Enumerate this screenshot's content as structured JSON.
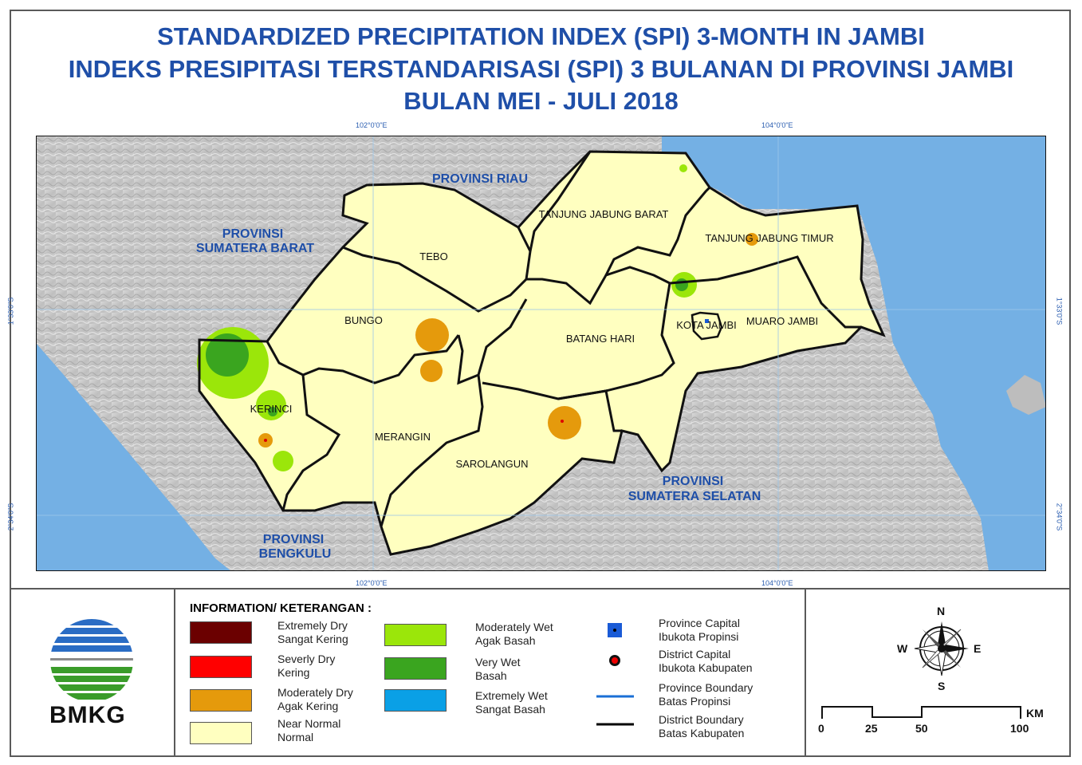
{
  "title": {
    "line1": "STANDARDIZED PRECIPITATION INDEX (SPI) 3-MONTH IN JAMBI",
    "line2": "INDEKS PRESIPITASI TERSTANDARISASI (SPI) 3 BULANAN DI PROVINSI JAMBI",
    "line3": "BULAN MEI - JULI 2018"
  },
  "coords": {
    "top_left": "102°0'0\"E",
    "top_right": "104°0'0\"E",
    "bottom_left": "102°0'0\"E",
    "bottom_right": "104°0'0\"E",
    "left_upper": "1°33'0\"S",
    "left_lower": "2°34'0\"S",
    "right_upper": "1°33'0\"S",
    "right_lower": "2°34'0\"S"
  },
  "map_labels": {
    "riau": "PROVINSI RIAU",
    "sumbar_1": "PROVINSI",
    "sumbar_2": "SUMATERA BARAT",
    "sumsel_1": "PROVINSI",
    "sumsel_2": "SUMATERA SELATAN",
    "bengkulu_1": "PROVINSI",
    "bengkulu_2": "BENGKULU",
    "tebo": "TEBO",
    "bungo": "BUNGO",
    "kerinci": "KERINCI",
    "merangin": "MERANGIN",
    "sarolangun": "SAROLANGUN",
    "batang_hari": "BATANG HARI",
    "tjb": "TANJUNG JABUNG BARAT",
    "tjt": "TANJUNG JABUNG TIMUR",
    "kota_jambi": "KOTA JAMBI",
    "muaro_jambi": "MUARO JAMBI"
  },
  "legend": {
    "title": "INFORMATION/ KETERANGAN :",
    "items": [
      {
        "en": "Extremely Dry",
        "id": "Sangat Kering",
        "color": "#6b0000"
      },
      {
        "en": "Severly Dry",
        "id": "Kering",
        "color": "#ff0000"
      },
      {
        "en": "Moderately Dry",
        "id": "Agak Kering",
        "color": "#e59a0c"
      },
      {
        "en": "Near Normal",
        "id": "Normal",
        "color": "#ffffc0"
      },
      {
        "en": "Moderately Wet",
        "id": "Agak Basah",
        "color": "#9be60a"
      },
      {
        "en": "Very Wet",
        "id": "Basah",
        "color": "#3aa51f"
      },
      {
        "en": "Extremely Wet",
        "id": "Sangat Basah",
        "color": "#0aa0e6"
      }
    ],
    "symbols": [
      {
        "en": "Province Capital",
        "id": "Ibukota Propinsi"
      },
      {
        "en": "District Capital",
        "id": "Ibukota Kabupaten"
      },
      {
        "en": "Province Boundary",
        "id": "Batas Propinsi"
      },
      {
        "en": "District Boundary",
        "id": "Batas Kabupaten"
      }
    ]
  },
  "logo": {
    "text": "BMKG"
  },
  "compass": {
    "n": "N",
    "s": "S",
    "e": "E",
    "w": "W"
  },
  "scale": {
    "ticks": [
      "0",
      "25",
      "50",
      "100"
    ],
    "unit": "KM"
  }
}
